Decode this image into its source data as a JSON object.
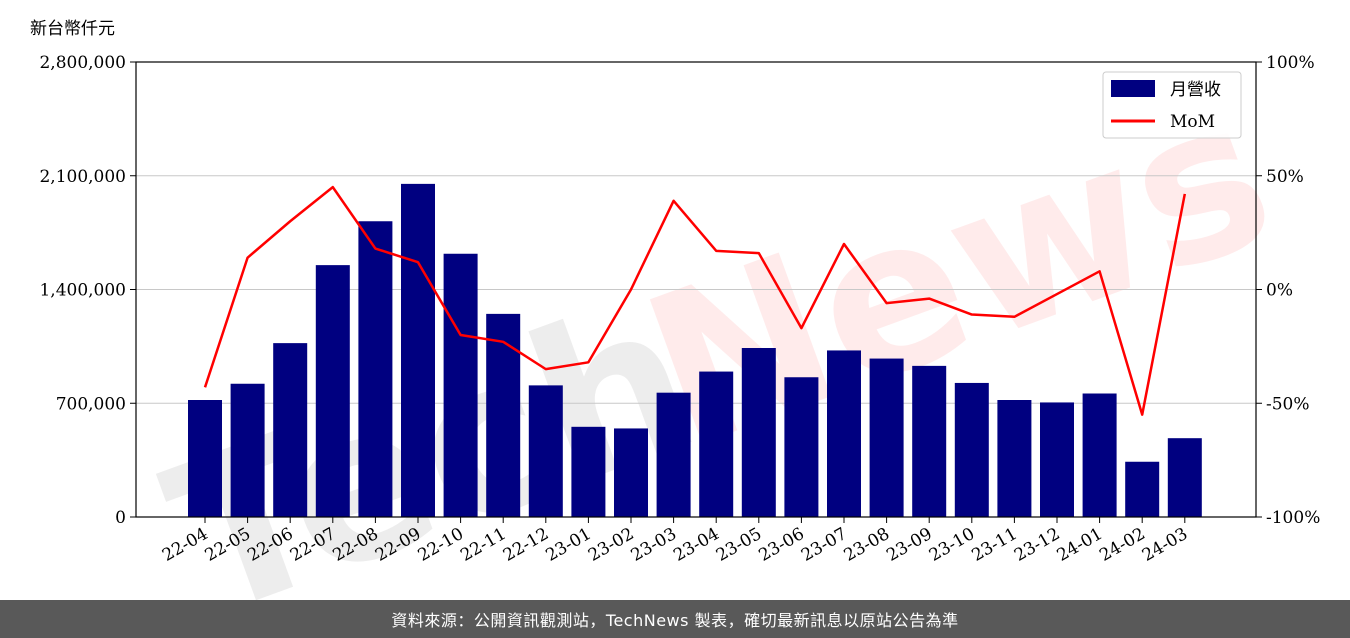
{
  "unit_label": "新台幣仟元",
  "footer_text": "資料來源：公開資訊觀測站，TechNews 製表，確切最新訊息以原站公告為準",
  "watermark": {
    "left": "Tech",
    "right": "News"
  },
  "colors": {
    "bar": "#000080",
    "line": "#ff0000",
    "footer_bg": "#595959"
  },
  "chart_data": {
    "type": "bar",
    "categories": [
      "22-04",
      "22-05",
      "22-06",
      "22-07",
      "22-08",
      "22-09",
      "22-10",
      "22-11",
      "22-12",
      "23-01",
      "23-02",
      "23-03",
      "23-04",
      "23-05",
      "23-06",
      "23-07",
      "23-08",
      "23-09",
      "23-10",
      "23-11",
      "23-12",
      "24-01",
      "24-02",
      "24-03"
    ],
    "series": [
      {
        "name": "月營收",
        "axis": "left",
        "kind": "bar",
        "values": [
          720000,
          820000,
          1070000,
          1550000,
          1820000,
          2050000,
          1620000,
          1250000,
          810000,
          555000,
          545000,
          765000,
          895000,
          1040000,
          860000,
          1025000,
          975000,
          930000,
          825000,
          720000,
          705000,
          760000,
          340000,
          485000
        ]
      },
      {
        "name": "MoM",
        "axis": "right",
        "kind": "line",
        "values": [
          -43,
          14,
          30,
          45,
          18,
          12,
          -20,
          -23,
          -35,
          -32,
          0,
          39,
          17,
          16,
          -17,
          20,
          -6,
          -4,
          -11,
          -12,
          -2,
          8,
          -55,
          42
        ]
      }
    ],
    "y_left": {
      "ylim": [
        0,
        2800000
      ],
      "ticks": [
        "0",
        "700,000",
        "1,400,000",
        "2,100,000",
        "2,800,000"
      ],
      "tick_values": [
        0,
        700000,
        1400000,
        2100000,
        2800000
      ]
    },
    "y_right": {
      "ylim": [
        -100,
        100
      ],
      "ticks": [
        "-100%",
        "-50%",
        "0%",
        "50%",
        "100%"
      ],
      "tick_values": [
        -100,
        -50,
        0,
        50,
        100
      ]
    },
    "grid": true,
    "legend_position": "top-right"
  }
}
